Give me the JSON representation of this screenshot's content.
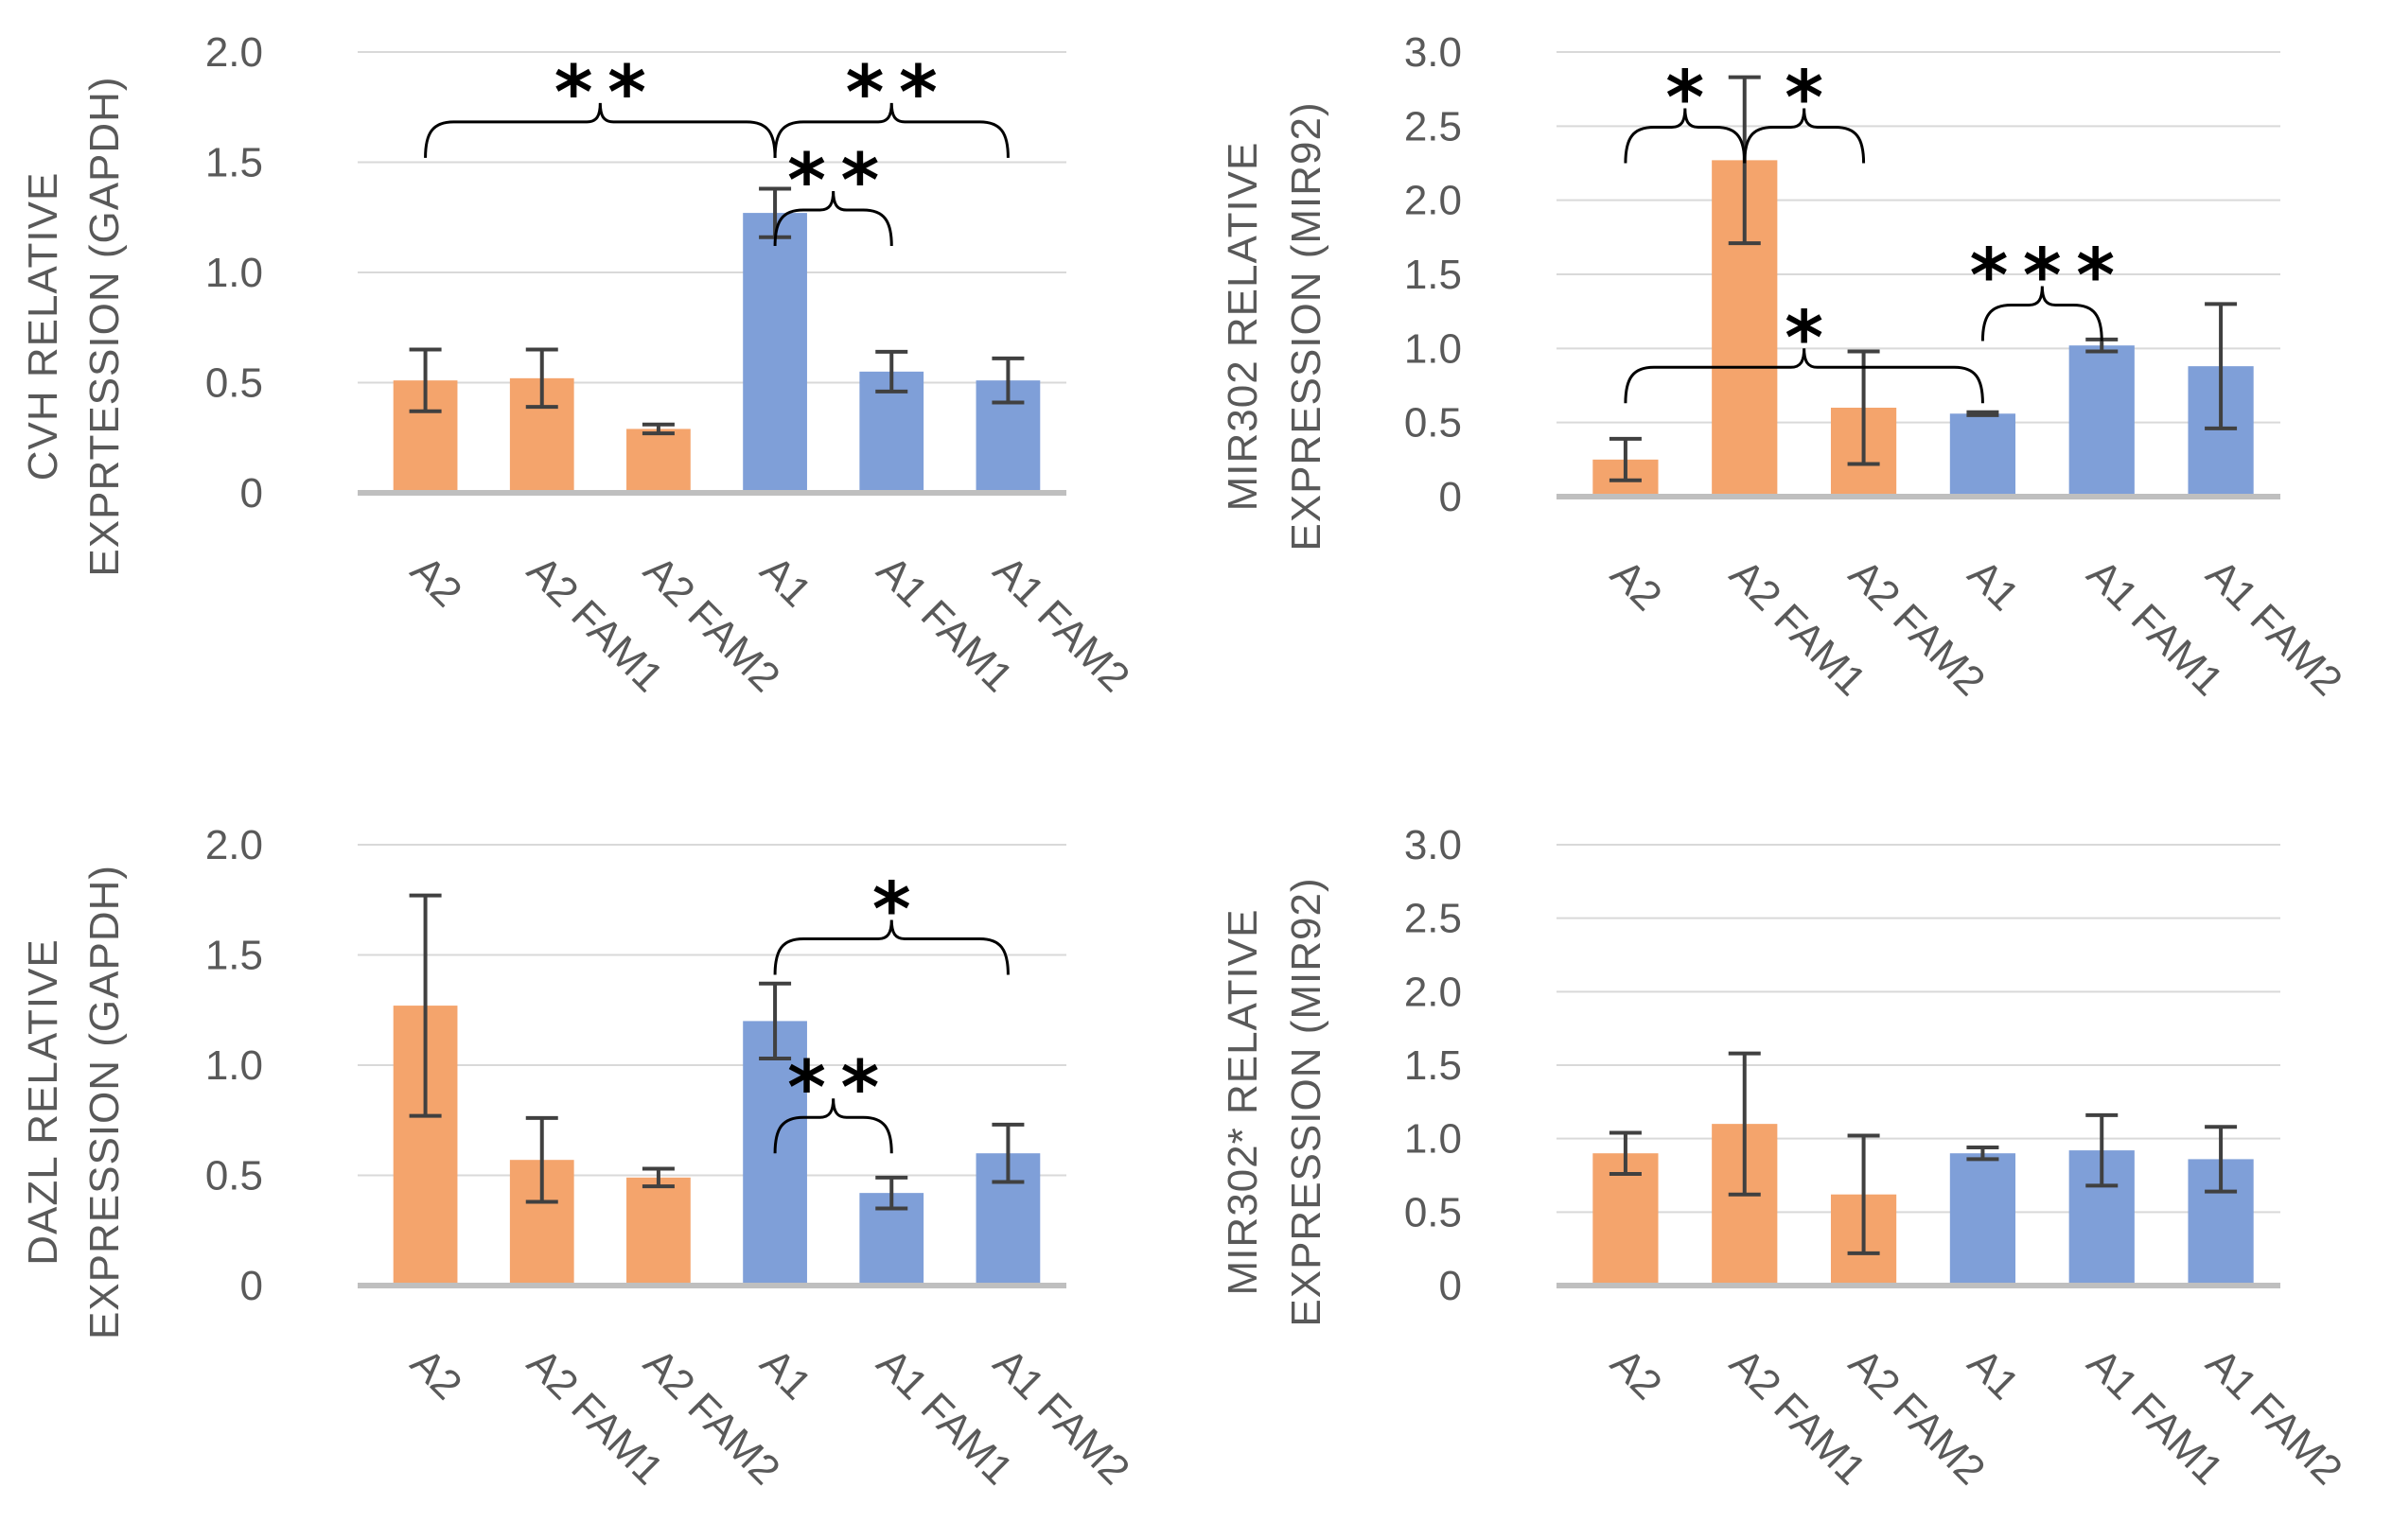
{
  "colors": {
    "orange": "#F4A46C",
    "blue": "#7F9FD8",
    "error_bar": "#404040",
    "gridline": "#D9D9D9",
    "axis": "#BFBFBF"
  },
  "chart_data": [
    {
      "type": "bar",
      "id": "cvh",
      "ylabel_lines": [
        "CVH RELATIVE",
        "EXPRTESSION (GAPDH)"
      ],
      "categories": [
        "A2",
        "A2 FAM1",
        "A2 FAM2",
        "A1",
        "A1 FAM1",
        "A1 FAM2"
      ],
      "values": [
        0.51,
        0.52,
        0.29,
        1.27,
        0.55,
        0.51
      ],
      "errors": [
        0.14,
        0.13,
        0.02,
        0.11,
        0.09,
        0.1
      ],
      "bar_colors": [
        "orange",
        "orange",
        "orange",
        "blue",
        "blue",
        "blue"
      ],
      "ylim": [
        0,
        2
      ],
      "yticks": [
        0,
        0.5,
        1,
        1.5,
        2
      ],
      "ytick_labels": [
        "0",
        "0.5",
        "1.0",
        "1.5",
        "2.0"
      ],
      "significance": [
        {
          "from": 0,
          "to": 3,
          "level": 1.52,
          "label": "**"
        },
        {
          "from": 3,
          "to": 5,
          "level": 1.52,
          "label": "**"
        },
        {
          "from": 3,
          "to": 4,
          "level": 1.12,
          "label": "**"
        }
      ]
    },
    {
      "type": "bar",
      "id": "mir302",
      "ylabel_lines": [
        "MIR302 RELATIVE",
        "EXPRESSION (MIR92)"
      ],
      "categories": [
        "A2",
        "A2 FAM1",
        "A2 FAM2",
        "A1",
        "A1 FAM1",
        "A1 FAM2"
      ],
      "values": [
        0.25,
        2.27,
        0.6,
        0.56,
        1.02,
        0.88
      ],
      "errors": [
        0.14,
        0.56,
        0.38,
        0.01,
        0.04,
        0.42
      ],
      "bar_colors": [
        "orange",
        "orange",
        "orange",
        "blue",
        "blue",
        "blue"
      ],
      "ylim": [
        0,
        3
      ],
      "yticks": [
        0,
        0.5,
        1,
        1.5,
        2,
        2.5,
        3
      ],
      "ytick_labels": [
        "0",
        "0.5",
        "1.0",
        "1.5",
        "2.0",
        "2.5",
        "3.0"
      ],
      "significance": [
        {
          "from": 0,
          "to": 1,
          "level": 2.25,
          "label": "*"
        },
        {
          "from": 1,
          "to": 2,
          "level": 2.25,
          "label": "*"
        },
        {
          "from": 0,
          "to": 3,
          "level": 0.63,
          "label": "*"
        },
        {
          "from": 3,
          "to": 4,
          "level": 1.05,
          "label": "***"
        }
      ]
    },
    {
      "type": "bar",
      "id": "dazl",
      "ylabel_lines": [
        "DAZL RELATIVE",
        "EXPRESSION (GAPDH)"
      ],
      "categories": [
        "A2",
        "A2 FAM1",
        "A2 FAM2",
        "A1",
        "A1 FAM1",
        "A1 FAM2"
      ],
      "values": [
        1.27,
        0.57,
        0.49,
        1.2,
        0.42,
        0.6
      ],
      "errors": [
        0.5,
        0.19,
        0.04,
        0.17,
        0.07,
        0.13
      ],
      "bar_colors": [
        "orange",
        "orange",
        "orange",
        "blue",
        "blue",
        "blue"
      ],
      "ylim": [
        0,
        2
      ],
      "yticks": [
        0,
        0.5,
        1,
        1.5,
        2
      ],
      "ytick_labels": [
        "0",
        "0.5",
        "1.0",
        "1.5",
        "2.0"
      ],
      "significance": [
        {
          "from": 3,
          "to": 5,
          "level": 1.41,
          "label": "*"
        },
        {
          "from": 3,
          "to": 4,
          "level": 0.6,
          "label": "**"
        }
      ]
    },
    {
      "type": "bar",
      "id": "mir302star",
      "ylabel_lines": [
        "MIR302* RELATIVE",
        "EXPRESSION (MIR92)"
      ],
      "categories": [
        "A2",
        "A2 FAM1",
        "A2 FAM2",
        "A1",
        "A1 FAM1",
        "A1 FAM2"
      ],
      "values": [
        0.9,
        1.1,
        0.62,
        0.9,
        0.92,
        0.86
      ],
      "errors": [
        0.14,
        0.48,
        0.4,
        0.04,
        0.24,
        0.22
      ],
      "bar_colors": [
        "orange",
        "orange",
        "orange",
        "blue",
        "blue",
        "blue"
      ],
      "ylim": [
        0,
        3
      ],
      "yticks": [
        0,
        0.5,
        1,
        1.5,
        2,
        2.5,
        3
      ],
      "ytick_labels": [
        "0",
        "0.5",
        "1.0",
        "1.5",
        "2.0",
        "2.5",
        "3.0"
      ],
      "significance": []
    }
  ]
}
